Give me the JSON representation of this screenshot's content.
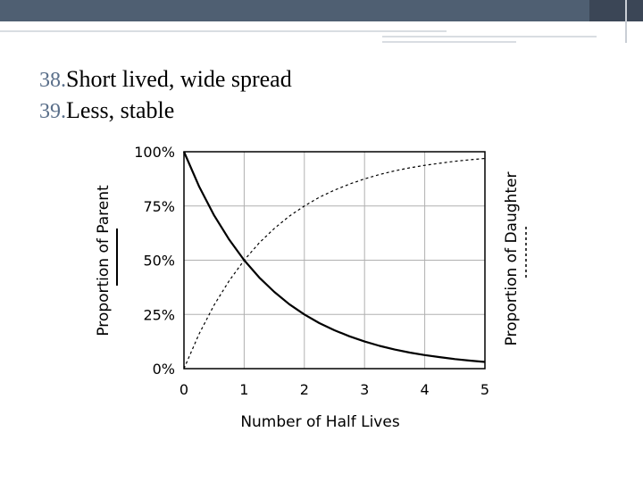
{
  "slide": {
    "bullets": [
      {
        "number": "38.",
        "text": "Short lived, wide spread"
      },
      {
        "number": "39.",
        "text": "Less, stable"
      }
    ]
  },
  "chart_data": {
    "type": "line",
    "x": [
      0,
      0.25,
      0.5,
      0.75,
      1,
      1.25,
      1.5,
      1.75,
      2,
      2.25,
      2.5,
      2.75,
      3,
      3.25,
      3.5,
      3.75,
      4,
      4.25,
      4.5,
      4.75,
      5
    ],
    "series": [
      {
        "name": "",
        "line_style": "solid",
        "values": [
          100,
          84.1,
          70.7,
          59.5,
          50,
          42,
          35.4,
          29.7,
          25,
          21,
          17.7,
          14.9,
          12.5,
          10.5,
          8.8,
          7.4,
          6.25,
          5.3,
          4.4,
          3.7,
          3.1
        ]
      },
      {
        "name": "",
        "line_style": "dashed",
        "values": [
          0,
          15.9,
          29.3,
          40.5,
          50,
          58,
          64.6,
          70.3,
          75,
          79,
          82.3,
          85.1,
          87.5,
          89.5,
          91.2,
          92.6,
          93.75,
          94.7,
          95.6,
          96.3,
          96.9
        ]
      }
    ],
    "xlabel": "Number of Half Lives",
    "ylabel": "Proportion of Parent",
    "y2label": "Proportion of Daughter",
    "xticks": [
      "0",
      "1",
      "2",
      "3",
      "4",
      "5"
    ],
    "yticks": [
      "0%",
      "25%",
      "50%",
      "75%",
      "100%"
    ],
    "xlim": [
      0,
      5
    ],
    "ylim": [
      0,
      100
    ],
    "grid": true
  },
  "colors": {
    "parent_line": "#000000",
    "daughter_line": "#000000",
    "grid": "#b0b0b0",
    "header_band": "#4f5f72"
  }
}
